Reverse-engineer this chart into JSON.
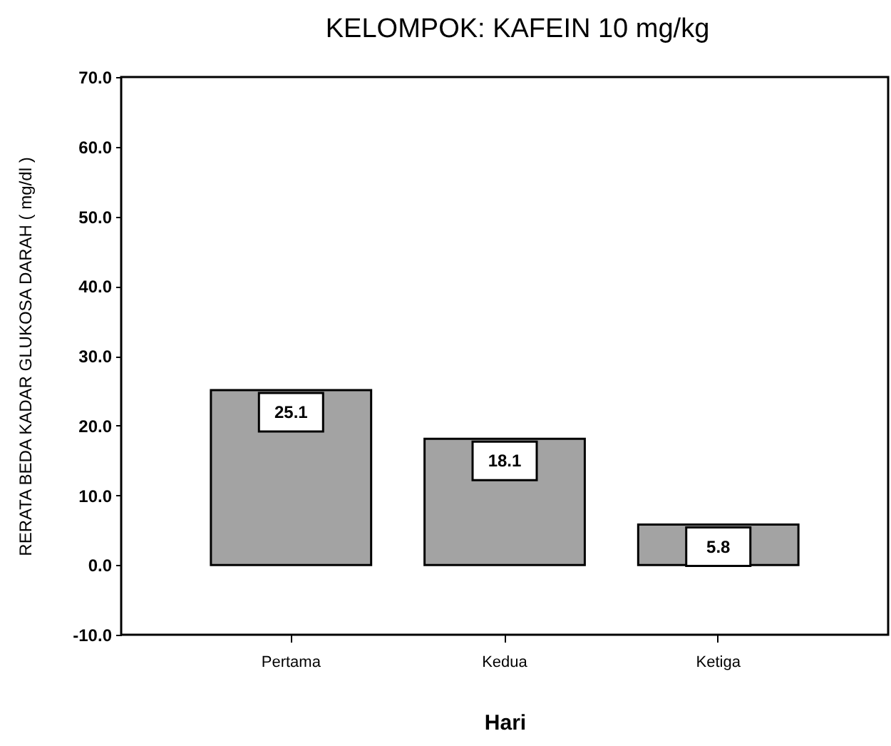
{
  "chart_data": {
    "type": "bar",
    "title": "KELOMPOK:     KAFEIN 10 mg/kg",
    "xlabel": "Hari",
    "ylabel": "RERATA BEDA KADAR GLUKOSA DARAH ( mg/dl )",
    "categories": [
      "Pertama",
      "Kedua",
      "Ketiga"
    ],
    "values": [
      25.1,
      18.1,
      5.8
    ],
    "color": "#a3a3a3",
    "ylim": [
      -10,
      70
    ],
    "yticks": [
      {
        "value": -10,
        "label": "-10.0"
      },
      {
        "value": 0,
        "label": "0.0"
      },
      {
        "value": 10,
        "label": "10.0"
      },
      {
        "value": 20,
        "label": "20.0"
      },
      {
        "value": 30,
        "label": "30.0"
      },
      {
        "value": 40,
        "label": "40.0"
      },
      {
        "value": 50,
        "label": "50.0"
      },
      {
        "value": 60,
        "label": "60.0"
      },
      {
        "value": 70,
        "label": "70.0"
      }
    ],
    "data_labels": true
  }
}
